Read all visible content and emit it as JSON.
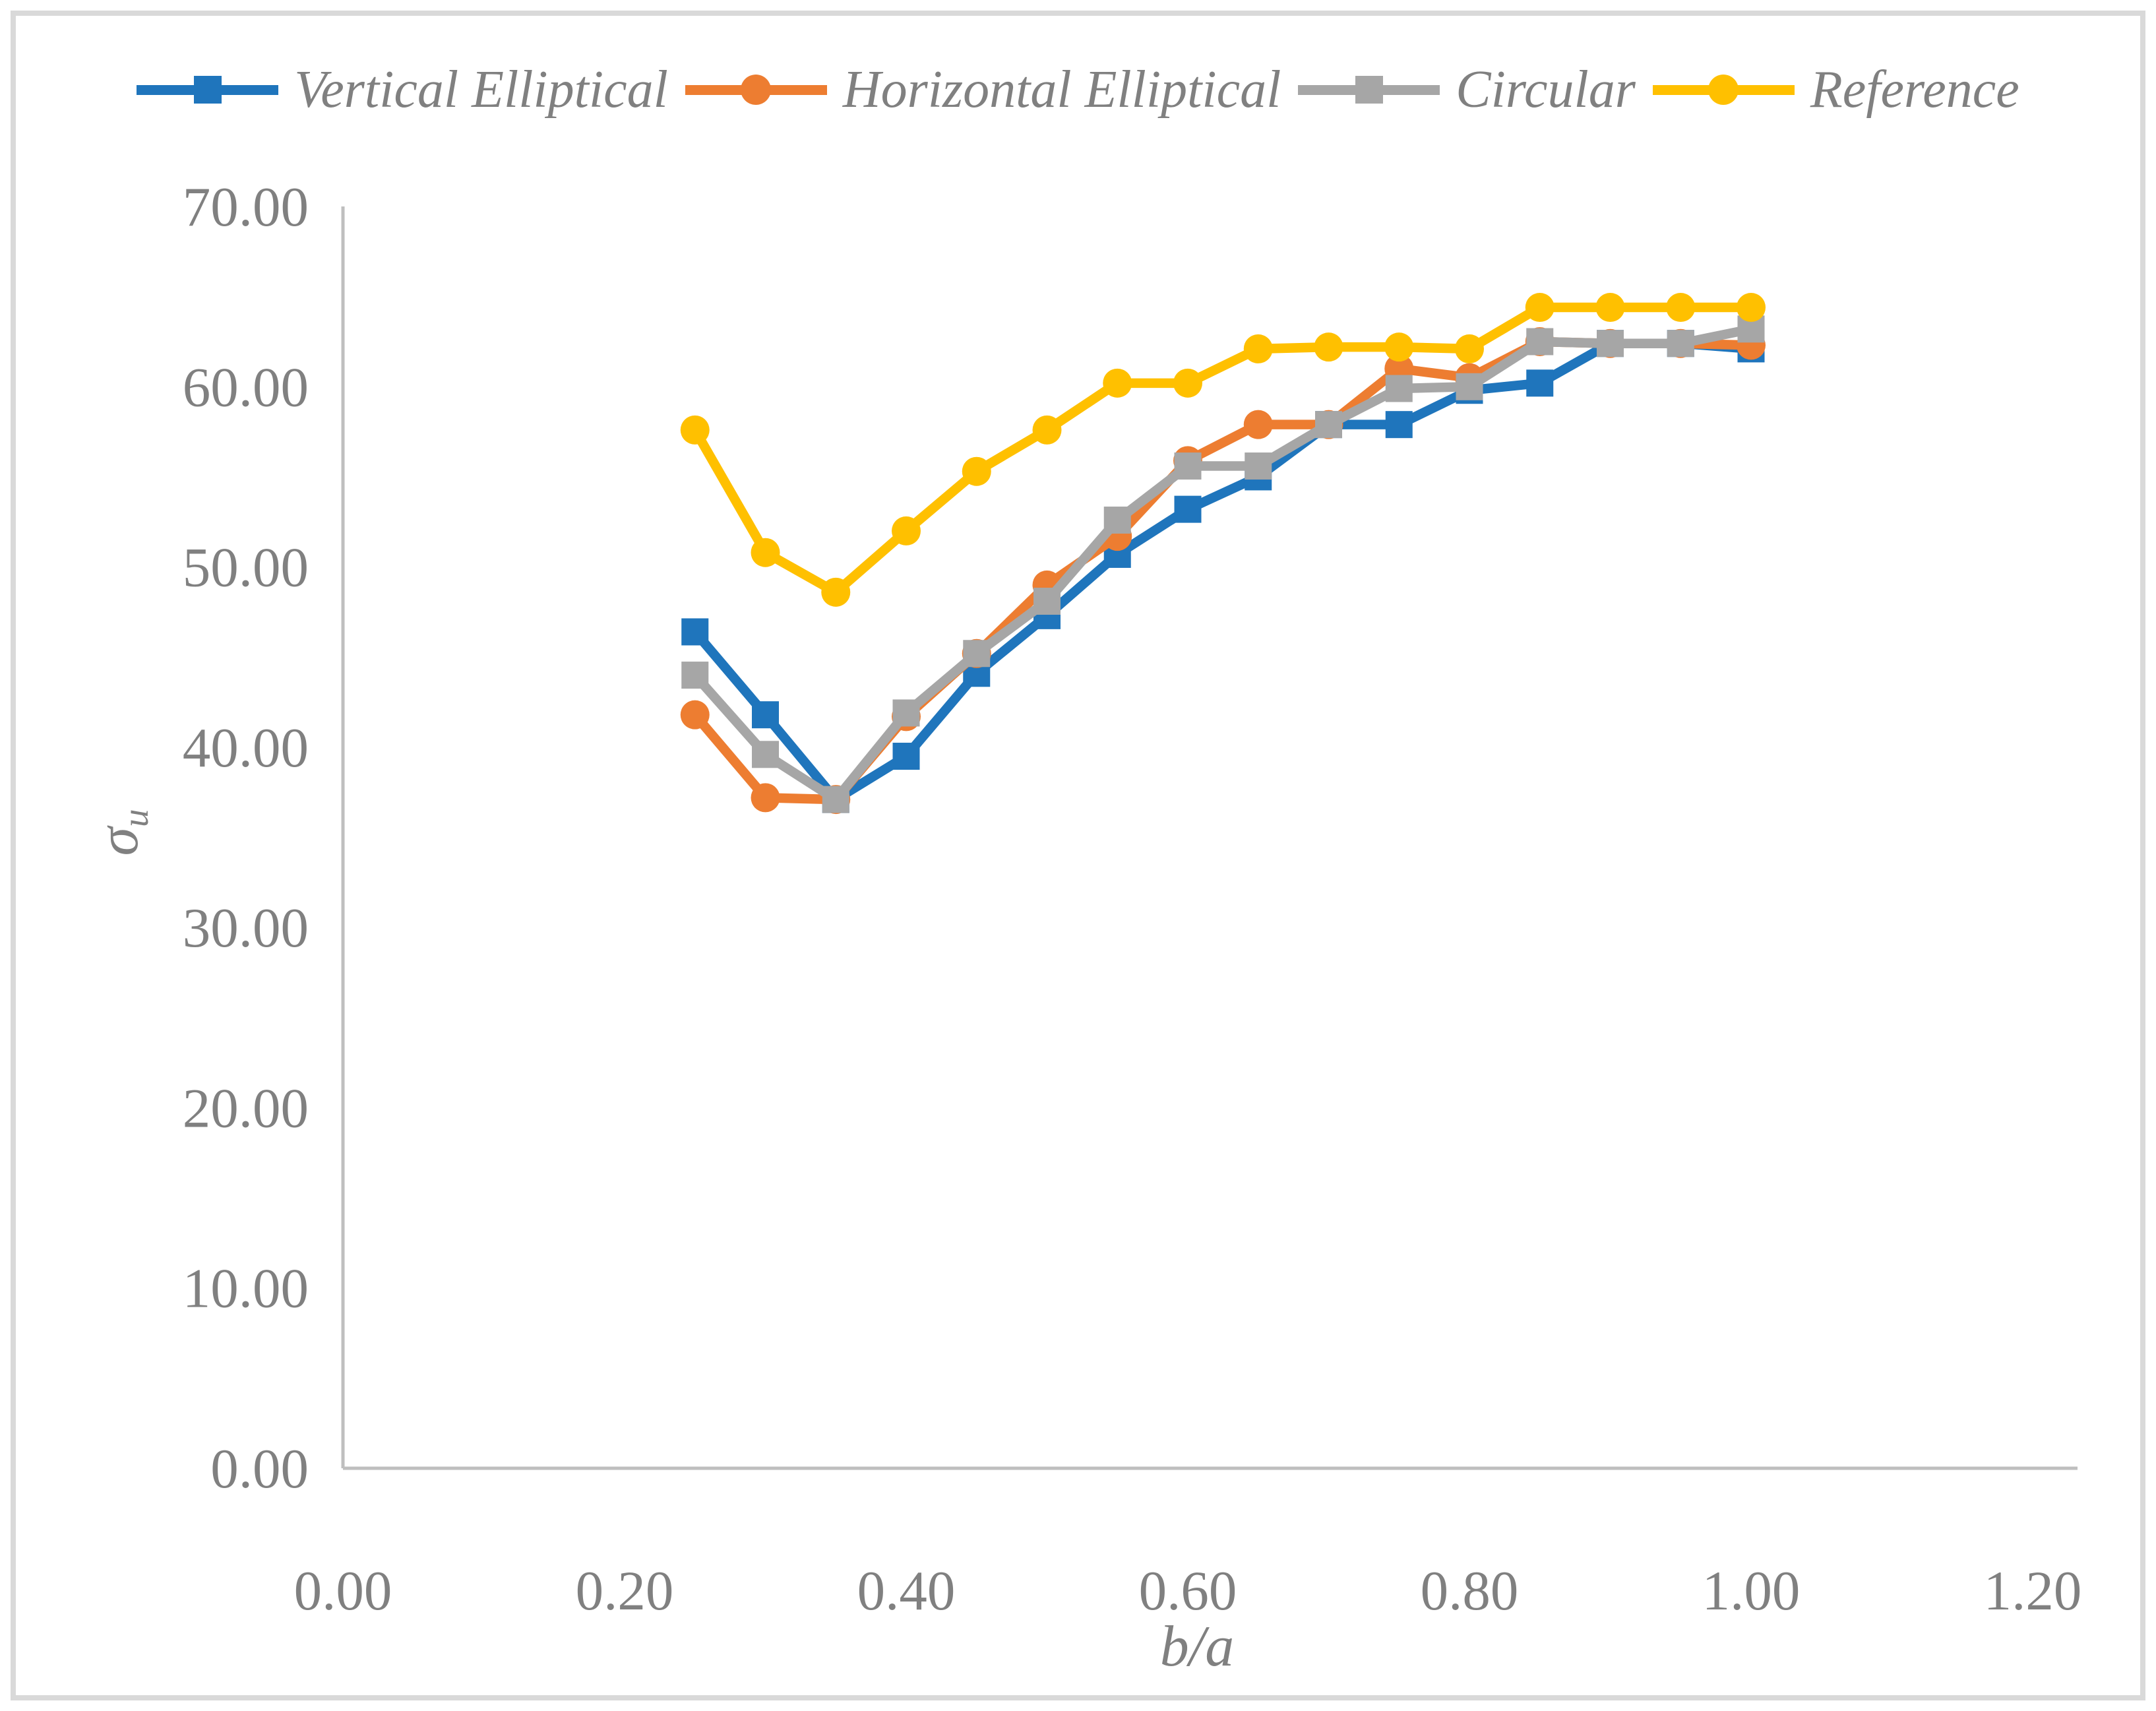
{
  "window": {
    "background": "#FFFFFF",
    "frame_border_color": "#D9D9D9"
  },
  "chart_data": {
    "type": "line",
    "title": "",
    "xlabel": "b/a",
    "ylabel": "σu",
    "ylabel_base": "σ",
    "ylabel_sub": "u",
    "xlim": [
      0.0,
      1.2
    ],
    "ylim": [
      0.0,
      70.0
    ],
    "grid": false,
    "legend_position": "top",
    "axis_color": "#BFBFBF",
    "tick_text_color": "#808080",
    "x": [
      0.25,
      0.3,
      0.35,
      0.4,
      0.45,
      0.5,
      0.55,
      0.6,
      0.65,
      0.7,
      0.75,
      0.8,
      0.85,
      0.9,
      0.95,
      1.0
    ],
    "series": [
      {
        "name": "Vertical Elliptical",
        "color": "#1F75BC",
        "marker": "square",
        "values": [
          46.4,
          41.8,
          37.1,
          39.5,
          44.1,
          47.3,
          50.7,
          53.2,
          55.0,
          57.9,
          57.9,
          59.8,
          60.2,
          62.4,
          62.4,
          62.1
        ]
      },
      {
        "name": "Horizontal Elliptical",
        "color": "#ED7D31",
        "marker": "circle",
        "values": [
          41.8,
          37.2,
          37.1,
          41.7,
          45.2,
          49.0,
          51.7,
          55.9,
          57.9,
          57.9,
          61.0,
          60.5,
          62.5,
          62.4,
          62.4,
          62.3
        ]
      },
      {
        "name": "Circular",
        "color": "#A6A6A6",
        "marker": "square",
        "values": [
          44.0,
          39.6,
          37.1,
          41.9,
          45.2,
          48.1,
          52.6,
          55.6,
          55.6,
          57.9,
          59.9,
          60.0,
          62.5,
          62.4,
          62.4,
          63.2
        ]
      },
      {
        "name": "Reference",
        "color": "#FFC000",
        "marker": "circle",
        "values": [
          57.6,
          50.8,
          48.6,
          52.0,
          55.3,
          57.6,
          60.2,
          60.2,
          62.1,
          62.2,
          62.2,
          62.1,
          64.4,
          64.4,
          64.4,
          64.4
        ]
      }
    ],
    "x_ticks": [
      {
        "value": 0.0,
        "label": "0.00"
      },
      {
        "value": 0.2,
        "label": "0.20"
      },
      {
        "value": 0.4,
        "label": "0.40"
      },
      {
        "value": 0.6,
        "label": "0.60"
      },
      {
        "value": 0.8,
        "label": "0.80"
      },
      {
        "value": 1.0,
        "label": "1.00"
      },
      {
        "value": 1.2,
        "label": "1.20"
      }
    ],
    "y_ticks": [
      {
        "value": 0,
        "label": "0.00"
      },
      {
        "value": 10,
        "label": "10.00"
      },
      {
        "value": 20,
        "label": "20.00"
      },
      {
        "value": 30,
        "label": "30.00"
      },
      {
        "value": 40,
        "label": "40.00"
      },
      {
        "value": 50,
        "label": "50.00"
      },
      {
        "value": 60,
        "label": "60.00"
      },
      {
        "value": 70,
        "label": "70.00"
      }
    ]
  }
}
